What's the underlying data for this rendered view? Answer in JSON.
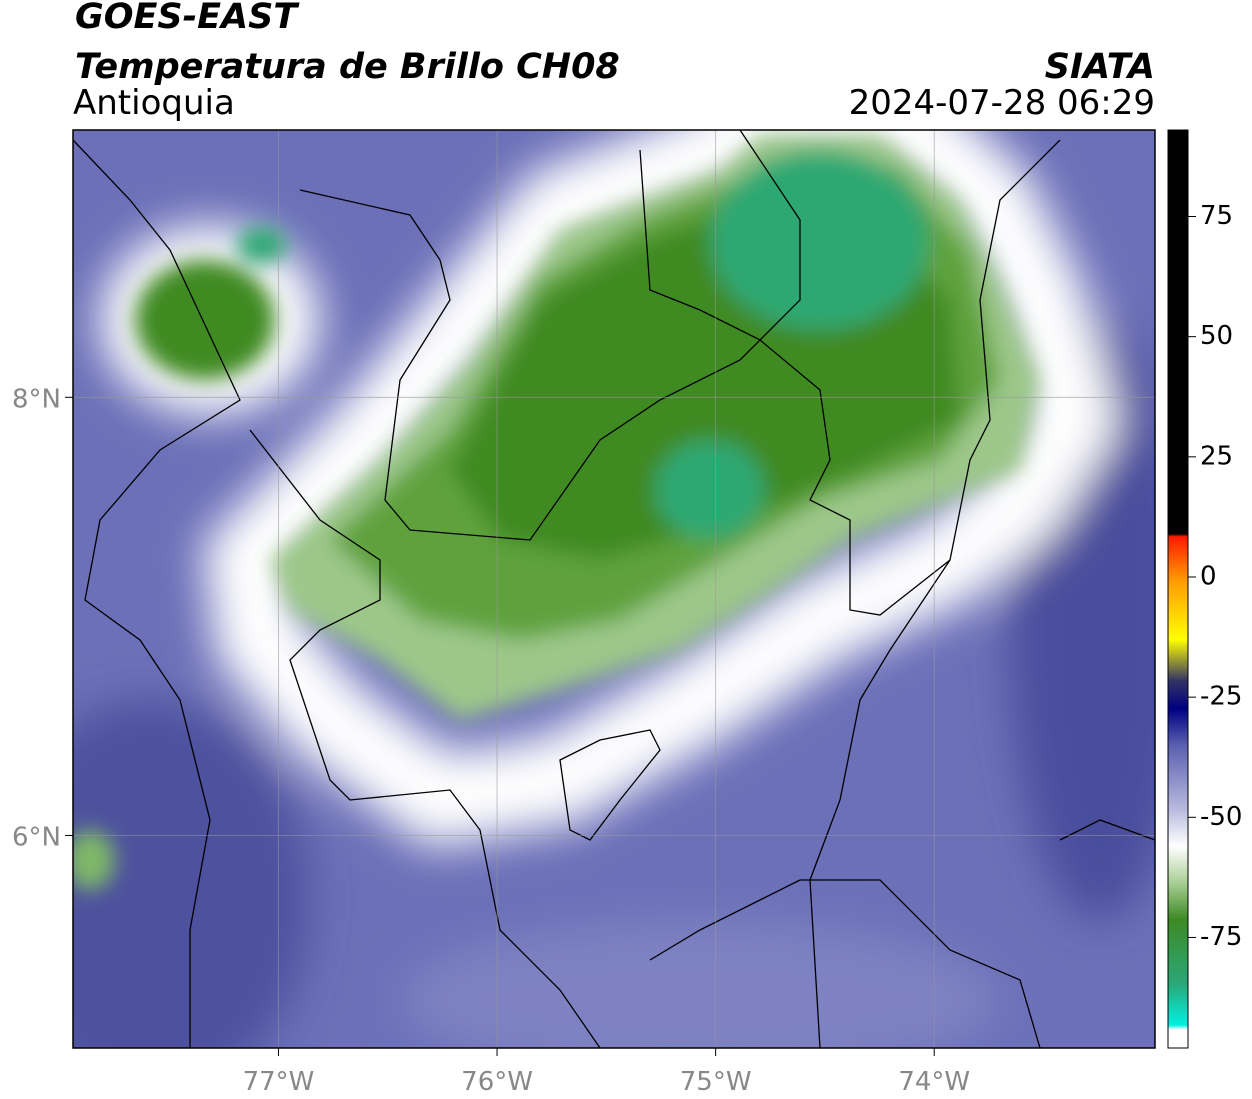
{
  "header": {
    "source": "GOES-EAST",
    "product": "Temperatura de Brillo CH08",
    "region": "Antioquia",
    "agency": "SIATA",
    "datetime": "2024-07-28 06:29"
  },
  "map": {
    "xlim": [
      -77.94,
      -72.99
    ],
    "ylim": [
      5.03,
      9.22
    ],
    "xticks": [
      {
        "value": -77,
        "label": "77°W"
      },
      {
        "value": -76,
        "label": "76°W"
      },
      {
        "value": -75,
        "label": "75°W"
      },
      {
        "value": -74,
        "label": "74°W"
      }
    ],
    "yticks": [
      {
        "value": 6,
        "label": "6°N"
      },
      {
        "value": 8,
        "label": "8°N"
      }
    ],
    "grid": true
  },
  "colorbar": {
    "lim": [
      -98,
      93
    ],
    "ticks": [
      75,
      50,
      25,
      0,
      -25,
      -50,
      -75
    ]
  }
}
